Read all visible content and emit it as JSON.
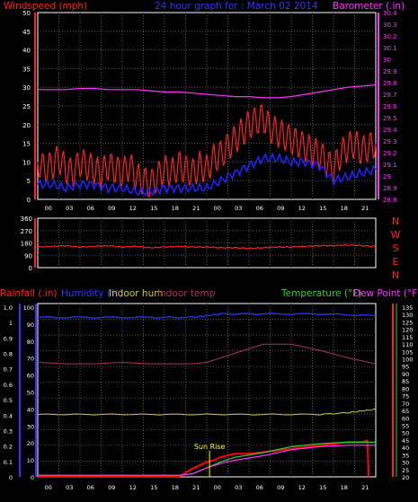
{
  "colors": {
    "bg": "#000000",
    "grid": "#555555",
    "axis": "#ffffff",
    "wind": "#ff2020",
    "wind_avg": "#2020ff",
    "barometer": "#ff33ff",
    "direction": "#ff2020",
    "rain": "#ff0000",
    "humidity": "#3030ff",
    "indoor_hum": "#cccc33",
    "indoor_temp": "#aa3366",
    "temperature": "#33cc33",
    "dew_point": "#ff33ff",
    "sun_rise": "#ffff00",
    "left_axis_blue": "#3333ff"
  },
  "chart_data": [
    {
      "type": "line",
      "title": "24 hour graph for : March 02 2014",
      "series": [
        {
          "name": "Windspeed (mph)",
          "axis": "left",
          "x": [
            0,
            0.5,
            1,
            1.5,
            2,
            2.5,
            3,
            3.5,
            4,
            4.5,
            5,
            5.5,
            6,
            6.5,
            7,
            7.5,
            8,
            8.5,
            9,
            9.5,
            10,
            10.5,
            11,
            11.5,
            12,
            12.5,
            13,
            13.5,
            14,
            14.5,
            15,
            15.5,
            16,
            16.5,
            17,
            17.5,
            18,
            18.5,
            19,
            19.5,
            20,
            20.5,
            21,
            21.5,
            22,
            22.5,
            23,
            23.5,
            24
          ],
          "values": [
            10,
            8,
            9,
            11,
            8,
            7,
            10,
            9,
            8,
            7,
            9,
            8,
            7,
            9,
            6,
            5,
            4,
            6,
            8,
            7,
            9,
            8,
            7,
            9,
            8,
            11,
            12,
            14,
            16,
            18,
            20,
            21,
            22,
            19,
            18,
            17,
            16,
            15,
            14,
            13,
            12,
            10,
            8,
            12,
            14,
            15,
            13,
            14,
            15
          ]
        },
        {
          "name": "Average windspeed",
          "axis": "left",
          "x": [
            0,
            1,
            2,
            3,
            4,
            5,
            6,
            7,
            8,
            9,
            10,
            11,
            12,
            13,
            14,
            15,
            16,
            17,
            18,
            19,
            20,
            21,
            22,
            23,
            24
          ],
          "values": [
            4,
            4,
            3,
            4,
            4,
            3,
            3,
            2,
            2,
            3,
            3,
            3,
            3,
            5,
            7,
            9,
            11,
            11,
            10,
            10,
            9,
            5,
            6,
            7,
            8
          ]
        },
        {
          "name": "Barometer (.in)",
          "axis": "right",
          "x": [
            0,
            1,
            2,
            3,
            4,
            5,
            6,
            7,
            8,
            9,
            10,
            11,
            12,
            13,
            14,
            15,
            16,
            17,
            18,
            19,
            20,
            21,
            22,
            23,
            24
          ],
          "values": [
            29.74,
            29.74,
            29.74,
            29.75,
            29.75,
            29.74,
            29.74,
            29.74,
            29.73,
            29.72,
            29.72,
            29.71,
            29.7,
            29.69,
            29.68,
            29.68,
            29.67,
            29.67,
            29.68,
            29.7,
            29.72,
            29.74,
            29.76,
            29.77,
            29.78
          ]
        }
      ],
      "ylabel_left": "Windspeed (mph)",
      "ylabel_right": "Barometer (.in)",
      "ylim_left": [
        0,
        50
      ],
      "ylim_right": [
        28.8,
        30.4
      ],
      "left_ticks": [
        "50",
        "45",
        "40",
        "35",
        "30",
        "25",
        "20",
        "15",
        "10",
        "5",
        "0"
      ],
      "right_ticks": [
        "30.4",
        "30.3",
        "30.2",
        "30.1",
        "30",
        "29.9",
        "29.8",
        "29.7",
        "29.6",
        "29.5",
        "29.4",
        "29.3",
        "29.2",
        "29.1",
        "29",
        "28.9",
        "28.8"
      ],
      "x_ticks": [
        "00",
        "03",
        "06",
        "09",
        "12",
        "15",
        "18",
        "21",
        "00",
        "03",
        "06",
        "09",
        "12",
        "15",
        "18",
        "21"
      ],
      "grid": true
    },
    {
      "type": "line",
      "series": [
        {
          "name": "Wind direction",
          "x": [
            0,
            1,
            2,
            3,
            4,
            5,
            6,
            7,
            8,
            9,
            10,
            11,
            12,
            13,
            14,
            15,
            16,
            17,
            18,
            19,
            20,
            21,
            22,
            23,
            24
          ],
          "values": [
            150,
            155,
            160,
            150,
            155,
            160,
            150,
            155,
            145,
            150,
            155,
            150,
            150,
            145,
            145,
            140,
            145,
            150,
            150,
            155,
            160,
            160,
            165,
            160,
            155
          ]
        }
      ],
      "left_ticks": [
        "360",
        "270",
        "180",
        "90",
        "0"
      ],
      "compass_labels": [
        "N",
        "W",
        "S",
        "E",
        "N"
      ],
      "ylim": [
        0,
        360
      ],
      "grid": true
    },
    {
      "type": "line",
      "series": [
        {
          "name": "Rainfall (.in)",
          "axis": "left",
          "x": [
            0,
            2,
            4,
            6,
            8,
            10,
            11,
            12,
            12.5,
            13,
            14,
            15,
            16,
            17,
            18,
            19,
            20,
            21,
            22,
            23,
            23.4,
            23.5
          ],
          "values": [
            0,
            0,
            0,
            0,
            0,
            0,
            0.05,
            0.09,
            0.1,
            0.12,
            0.14,
            0.14,
            0.15,
            0.16,
            0.17,
            0.18,
            0.19,
            0.2,
            0.21,
            0.21,
            0.22,
            0
          ]
        },
        {
          "name": "Humidity (%)",
          "axis": "left_pct",
          "x": [
            0,
            4,
            8,
            11,
            12,
            13,
            16,
            20,
            24
          ],
          "values": [
            92,
            92,
            92,
            92,
            93,
            94,
            94,
            94,
            93
          ]
        },
        {
          "name": "Indoor hum",
          "axis": "left_pct",
          "x": [
            0,
            4,
            8,
            12,
            16,
            20,
            22,
            23,
            24
          ],
          "values": [
            36,
            36,
            36,
            36,
            36,
            36,
            37,
            38,
            39
          ]
        },
        {
          "name": "Indoor temp",
          "axis": "right",
          "x": [
            0,
            2,
            4,
            6,
            8,
            10,
            11,
            12,
            14,
            16,
            18,
            20,
            22,
            24
          ],
          "values": [
            96,
            95,
            95,
            96,
            95,
            95,
            95,
            96,
            102,
            108,
            108,
            104,
            99,
            95
          ]
        },
        {
          "name": "Temperature (°F)",
          "axis": "right",
          "x": [
            0,
            4,
            8,
            10,
            11,
            12,
            13,
            14,
            16,
            18,
            20,
            22,
            24
          ],
          "values": [
            21,
            21,
            21,
            21,
            22,
            26,
            30,
            33,
            36,
            40,
            42,
            43,
            43
          ]
        },
        {
          "name": "Dew Point (°F)",
          "axis": "right",
          "x": [
            0,
            4,
            8,
            10,
            11,
            12,
            13,
            14,
            16,
            18,
            20,
            22,
            24
          ],
          "values": [
            21,
            21,
            21,
            21,
            22,
            26,
            29,
            31,
            34,
            38,
            40,
            41,
            41
          ]
        }
      ],
      "labels": {
        "rainfall": "Rainfall (.in)",
        "humidity": "Humidity (%)",
        "indoor_hum": "Indoor hum",
        "indoor_temp": "Indoor temp",
        "temperature": "Temperature (°F)",
        "dew_point": "Dew Point (°F)",
        "sun_rise": "Sun Rise"
      },
      "left_ticks": [
        "1.0",
        "1",
        "0.9",
        "0.8",
        "0.7",
        "0.6",
        "0.5",
        "0.4",
        "0.3",
        "0.2",
        "0.1",
        "0"
      ],
      "left_pct_ticks": [
        "100",
        "90",
        "80",
        "70",
        "60",
        "50",
        "40",
        "30",
        "20",
        "10",
        "0"
      ],
      "right_ticks": [
        "135",
        "130",
        "125",
        "120",
        "115",
        "110",
        "105",
        "100",
        "95",
        "90",
        "85",
        "80",
        "75",
        "70",
        "65",
        "60",
        "55",
        "50",
        "45",
        "40",
        "35",
        "30",
        "25",
        "20"
      ],
      "x_ticks": [
        "00",
        "03",
        "06",
        "09",
        "12",
        "15",
        "18",
        "21",
        "00",
        "03",
        "06",
        "09",
        "12",
        "15",
        "18",
        "21"
      ],
      "sun_rise_hour": 12.2,
      "grid": true
    }
  ]
}
